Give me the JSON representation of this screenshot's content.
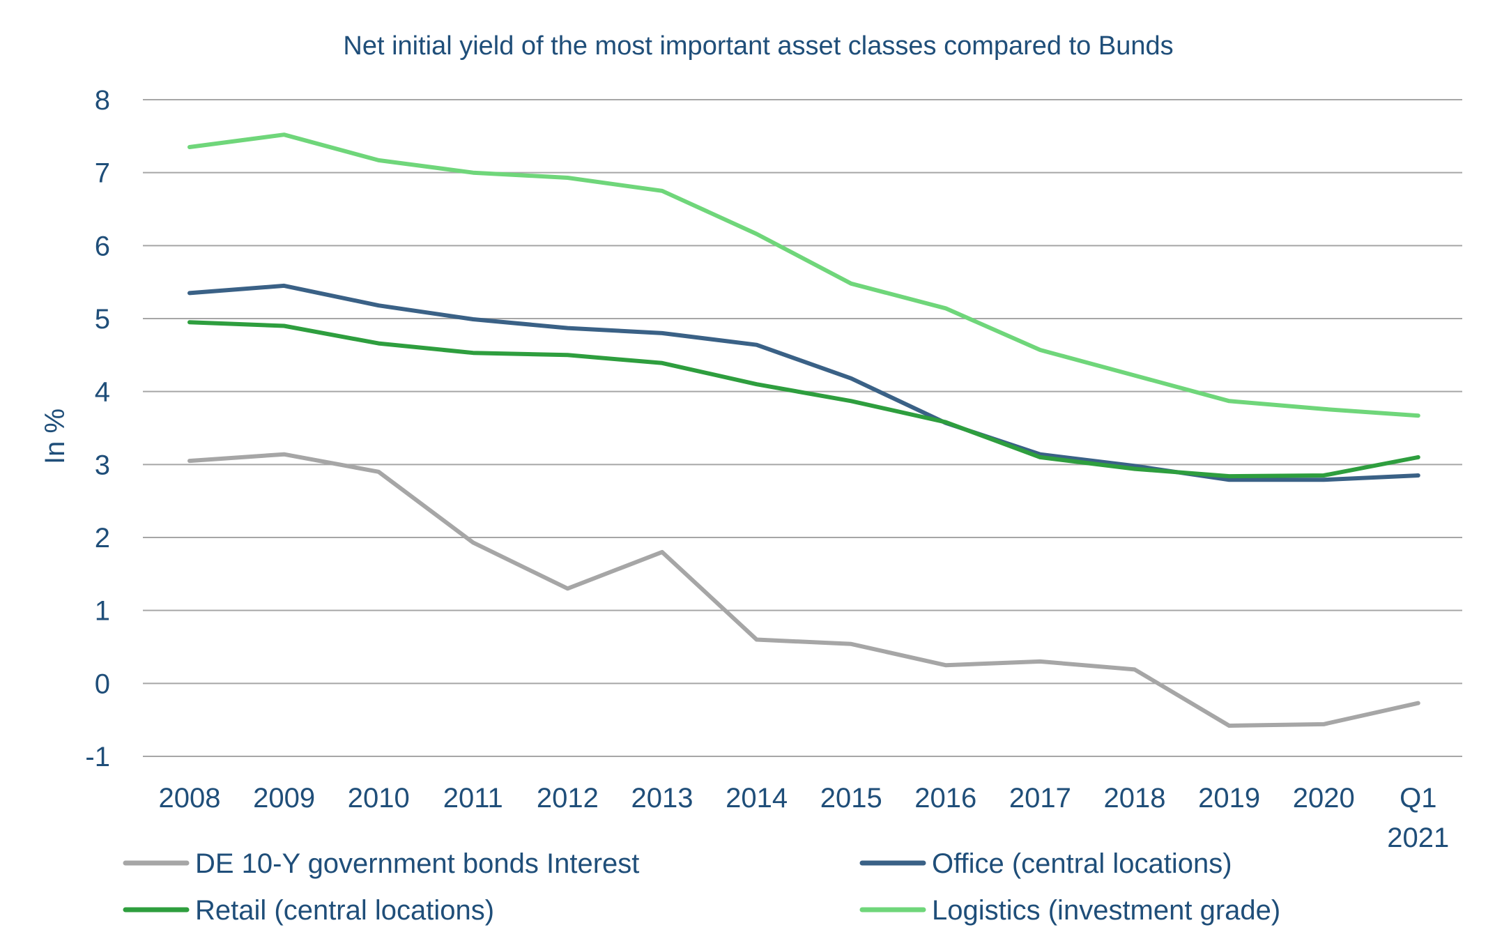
{
  "chart_data": {
    "type": "line",
    "title": "Net initial yield of the most important asset classes compared to Bunds",
    "ylabel": "In %",
    "xlabel": "",
    "ylim": [
      -1,
      8
    ],
    "yticks": [
      -1,
      0,
      1,
      2,
      3,
      4,
      5,
      6,
      7,
      8
    ],
    "grid": true,
    "legend_position": "bottom",
    "categories": [
      [
        "2008"
      ],
      [
        "2009"
      ],
      [
        "2010"
      ],
      [
        "2011"
      ],
      [
        "2012"
      ],
      [
        "2013"
      ],
      [
        "2014"
      ],
      [
        "2015"
      ],
      [
        "2016"
      ],
      [
        "2017"
      ],
      [
        "2018"
      ],
      [
        "2019"
      ],
      [
        "2020"
      ],
      [
        "Q1",
        "2021"
      ]
    ],
    "series": [
      {
        "name": "DE 10-Y government bonds Interest",
        "color": "#a6a6a6",
        "values": [
          3.05,
          3.14,
          2.9,
          1.93,
          1.3,
          1.8,
          0.6,
          0.54,
          0.25,
          0.3,
          0.19,
          -0.58,
          -0.56,
          -0.27
        ]
      },
      {
        "name": "Office (central locations)",
        "color": "#3a6186",
        "values": [
          5.35,
          5.45,
          5.18,
          4.99,
          4.87,
          4.8,
          4.64,
          4.18,
          3.57,
          3.14,
          2.98,
          2.79,
          2.79,
          2.85
        ]
      },
      {
        "name": "Retail (central locations)",
        "color": "#2e9e3e",
        "values": [
          4.95,
          4.9,
          4.66,
          4.53,
          4.5,
          4.39,
          4.1,
          3.87,
          3.58,
          3.1,
          2.94,
          2.84,
          2.85,
          3.1
        ]
      },
      {
        "name": "Logistics (investment grade)",
        "color": "#6fd67a",
        "values": [
          7.35,
          7.52,
          7.17,
          7.0,
          6.93,
          6.75,
          6.16,
          5.48,
          5.14,
          4.57,
          4.22,
          3.87,
          3.76,
          3.67
        ]
      }
    ]
  },
  "colors": {
    "text": "#1f4e79",
    "grid": "#a6a6a6"
  }
}
